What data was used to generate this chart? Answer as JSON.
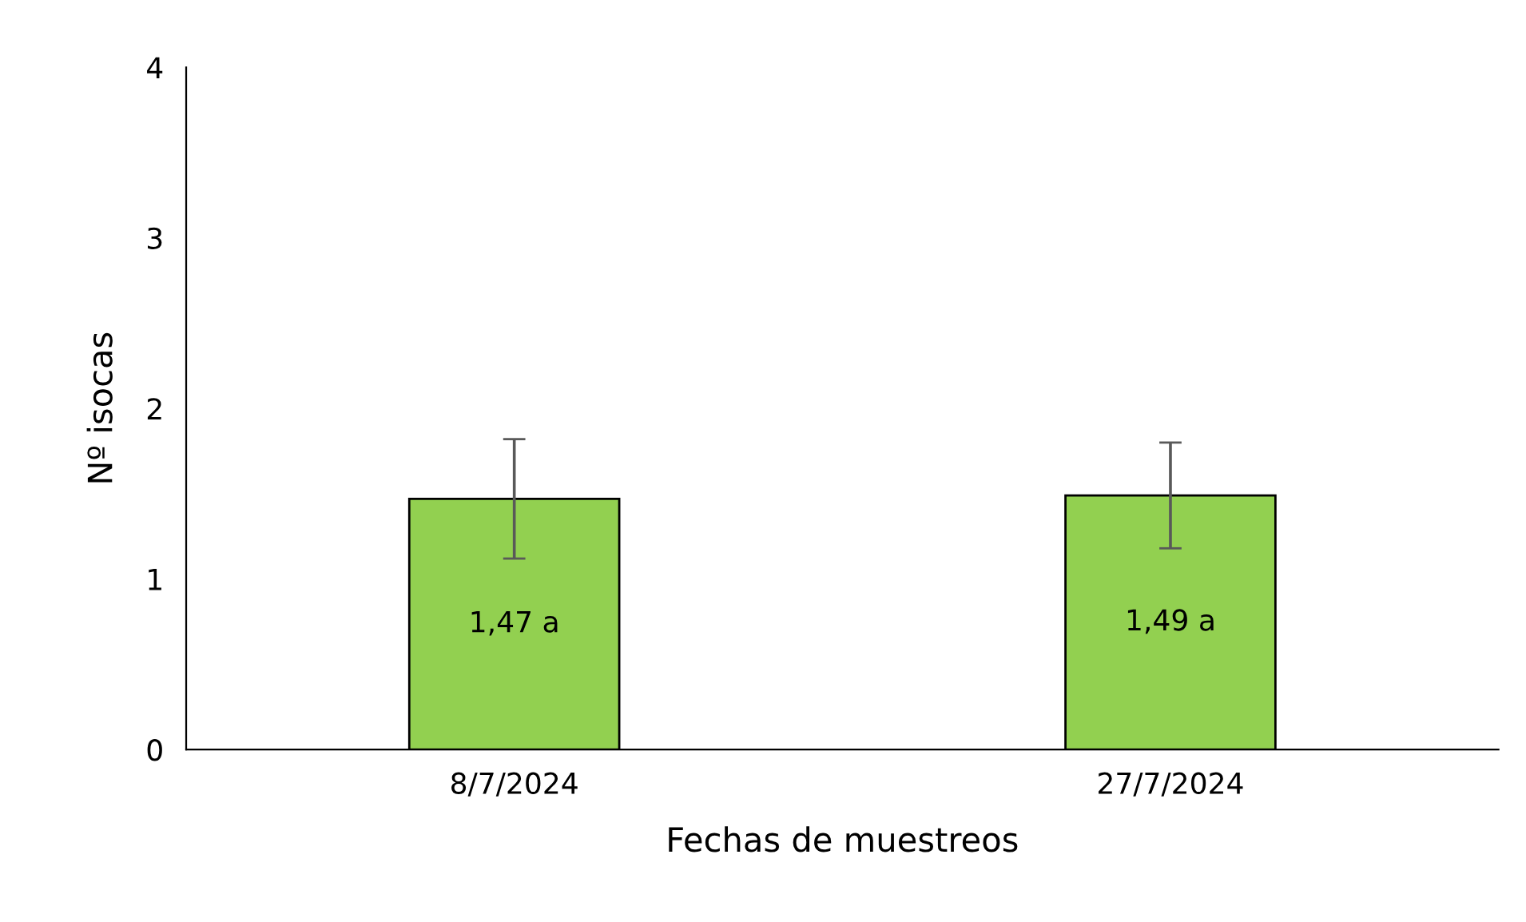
{
  "chart_data": {
    "type": "bar",
    "xlabel": "Fechas de muestreos",
    "ylabel": "Nº isocas",
    "categories": [
      "8/7/2024",
      "27/7/2024"
    ],
    "values": [
      1.47,
      1.49
    ],
    "color": "#92d050",
    "errors": [
      0.35,
      0.31
    ],
    "value_labels": [
      "1,47 a",
      "1,49 a"
    ],
    "ylim": [
      0,
      4
    ],
    "yticks": [
      0,
      1,
      2,
      3,
      4
    ],
    "grid": false,
    "legend": false
  }
}
